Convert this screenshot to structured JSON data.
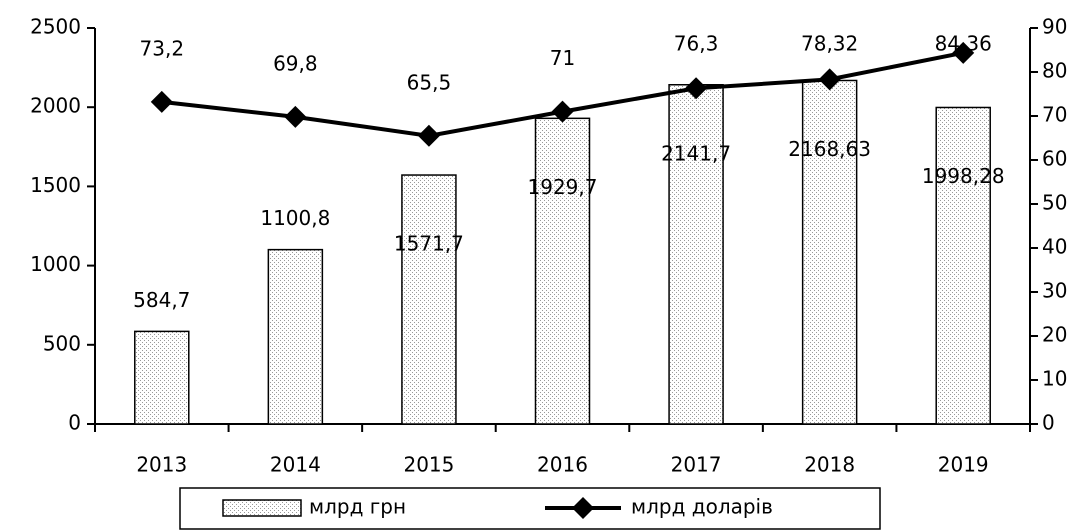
{
  "chart_data": {
    "type": "bar",
    "categories": [
      "2013",
      "2014",
      "2015",
      "2016",
      "2017",
      "2018",
      "2019"
    ],
    "series": [
      {
        "name": "млрд грн",
        "type": "bar",
        "color": "#000000",
        "values": [
          584.7,
          1100.8,
          1571.7,
          1929.7,
          2141.7,
          2168.63,
          1998.28
        ],
        "value_labels": [
          "584,7",
          "1100,8",
          "1571,7",
          "1929,7",
          "2141,7",
          "2168,63",
          "1998,28"
        ]
      },
      {
        "name": "млрд доларів",
        "type": "line",
        "axis": "y2",
        "color": "#000000",
        "values": [
          73.2,
          69.8,
          65.5,
          71,
          76.3,
          78.32,
          84.36
        ],
        "value_labels": [
          "73,2",
          "69,8",
          "65,5",
          "71",
          "76,3",
          "78,32",
          "84,36"
        ]
      }
    ],
    "ylim": [
      0,
      2500
    ],
    "yticks": [
      0,
      500,
      1000,
      1500,
      2000,
      2500
    ],
    "y2lim": [
      0,
      90
    ],
    "y2ticks": [
      0,
      10,
      20,
      30,
      40,
      50,
      60,
      70,
      80,
      90
    ],
    "legend": "bottom"
  }
}
